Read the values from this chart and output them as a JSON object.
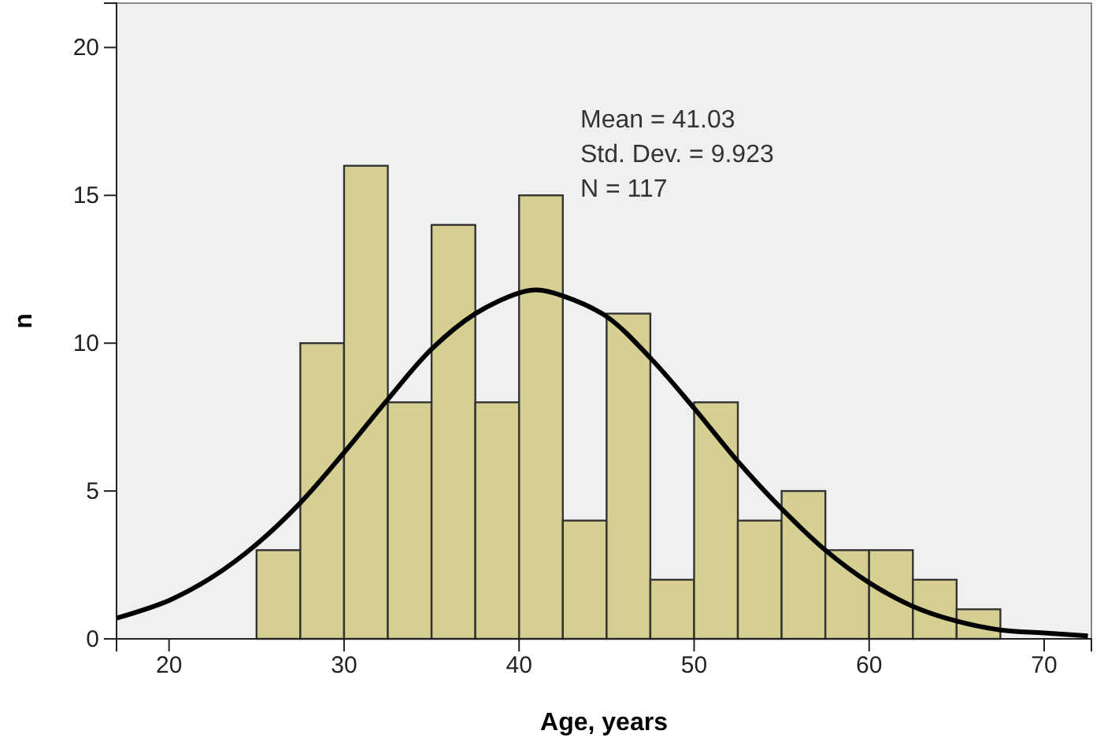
{
  "chart_data": {
    "type": "histogram",
    "xlabel": "Age, years",
    "ylabel": "n",
    "bins": [
      25,
      27.5,
      30,
      32.5,
      35,
      37.5,
      40,
      42.5,
      45,
      47.5,
      50,
      52.5,
      55,
      57.5,
      60,
      62.5,
      65,
      67.5
    ],
    "values": [
      3,
      10,
      16,
      8,
      14,
      8,
      15,
      4,
      11,
      2,
      8,
      4,
      5,
      3,
      3,
      2,
      1
    ],
    "color": "#d6cf92",
    "series": [
      {
        "type": "line",
        "color": "#000000",
        "x": [
          17,
          20,
          22.5,
          25,
          27.5,
          30,
          32.5,
          35,
          37.5,
          40,
          41,
          42.5,
          45,
          47.5,
          50,
          52.5,
          55,
          57.5,
          60,
          62.5,
          65,
          67.5,
          70,
          72.5
        ],
        "values": [
          0.7,
          1.3,
          2.1,
          3.2,
          4.6,
          6.3,
          8.1,
          9.8,
          11.0,
          11.7,
          11.8,
          11.6,
          10.9,
          9.5,
          7.8,
          6.0,
          4.4,
          3.0,
          1.9,
          1.1,
          0.6,
          0.3,
          0.2,
          0.1
        ]
      }
    ],
    "annotations": [
      "Mean = 41.03",
      "Std. Dev. = 9.923",
      "N = 117"
    ],
    "xlim": [
      17,
      72.7
    ],
    "ylim": [
      0,
      21.5
    ],
    "xticks": [
      20,
      30,
      40,
      50,
      60,
      70
    ],
    "yticks": [
      0,
      5,
      10,
      15,
      20
    ],
    "grid": false
  }
}
